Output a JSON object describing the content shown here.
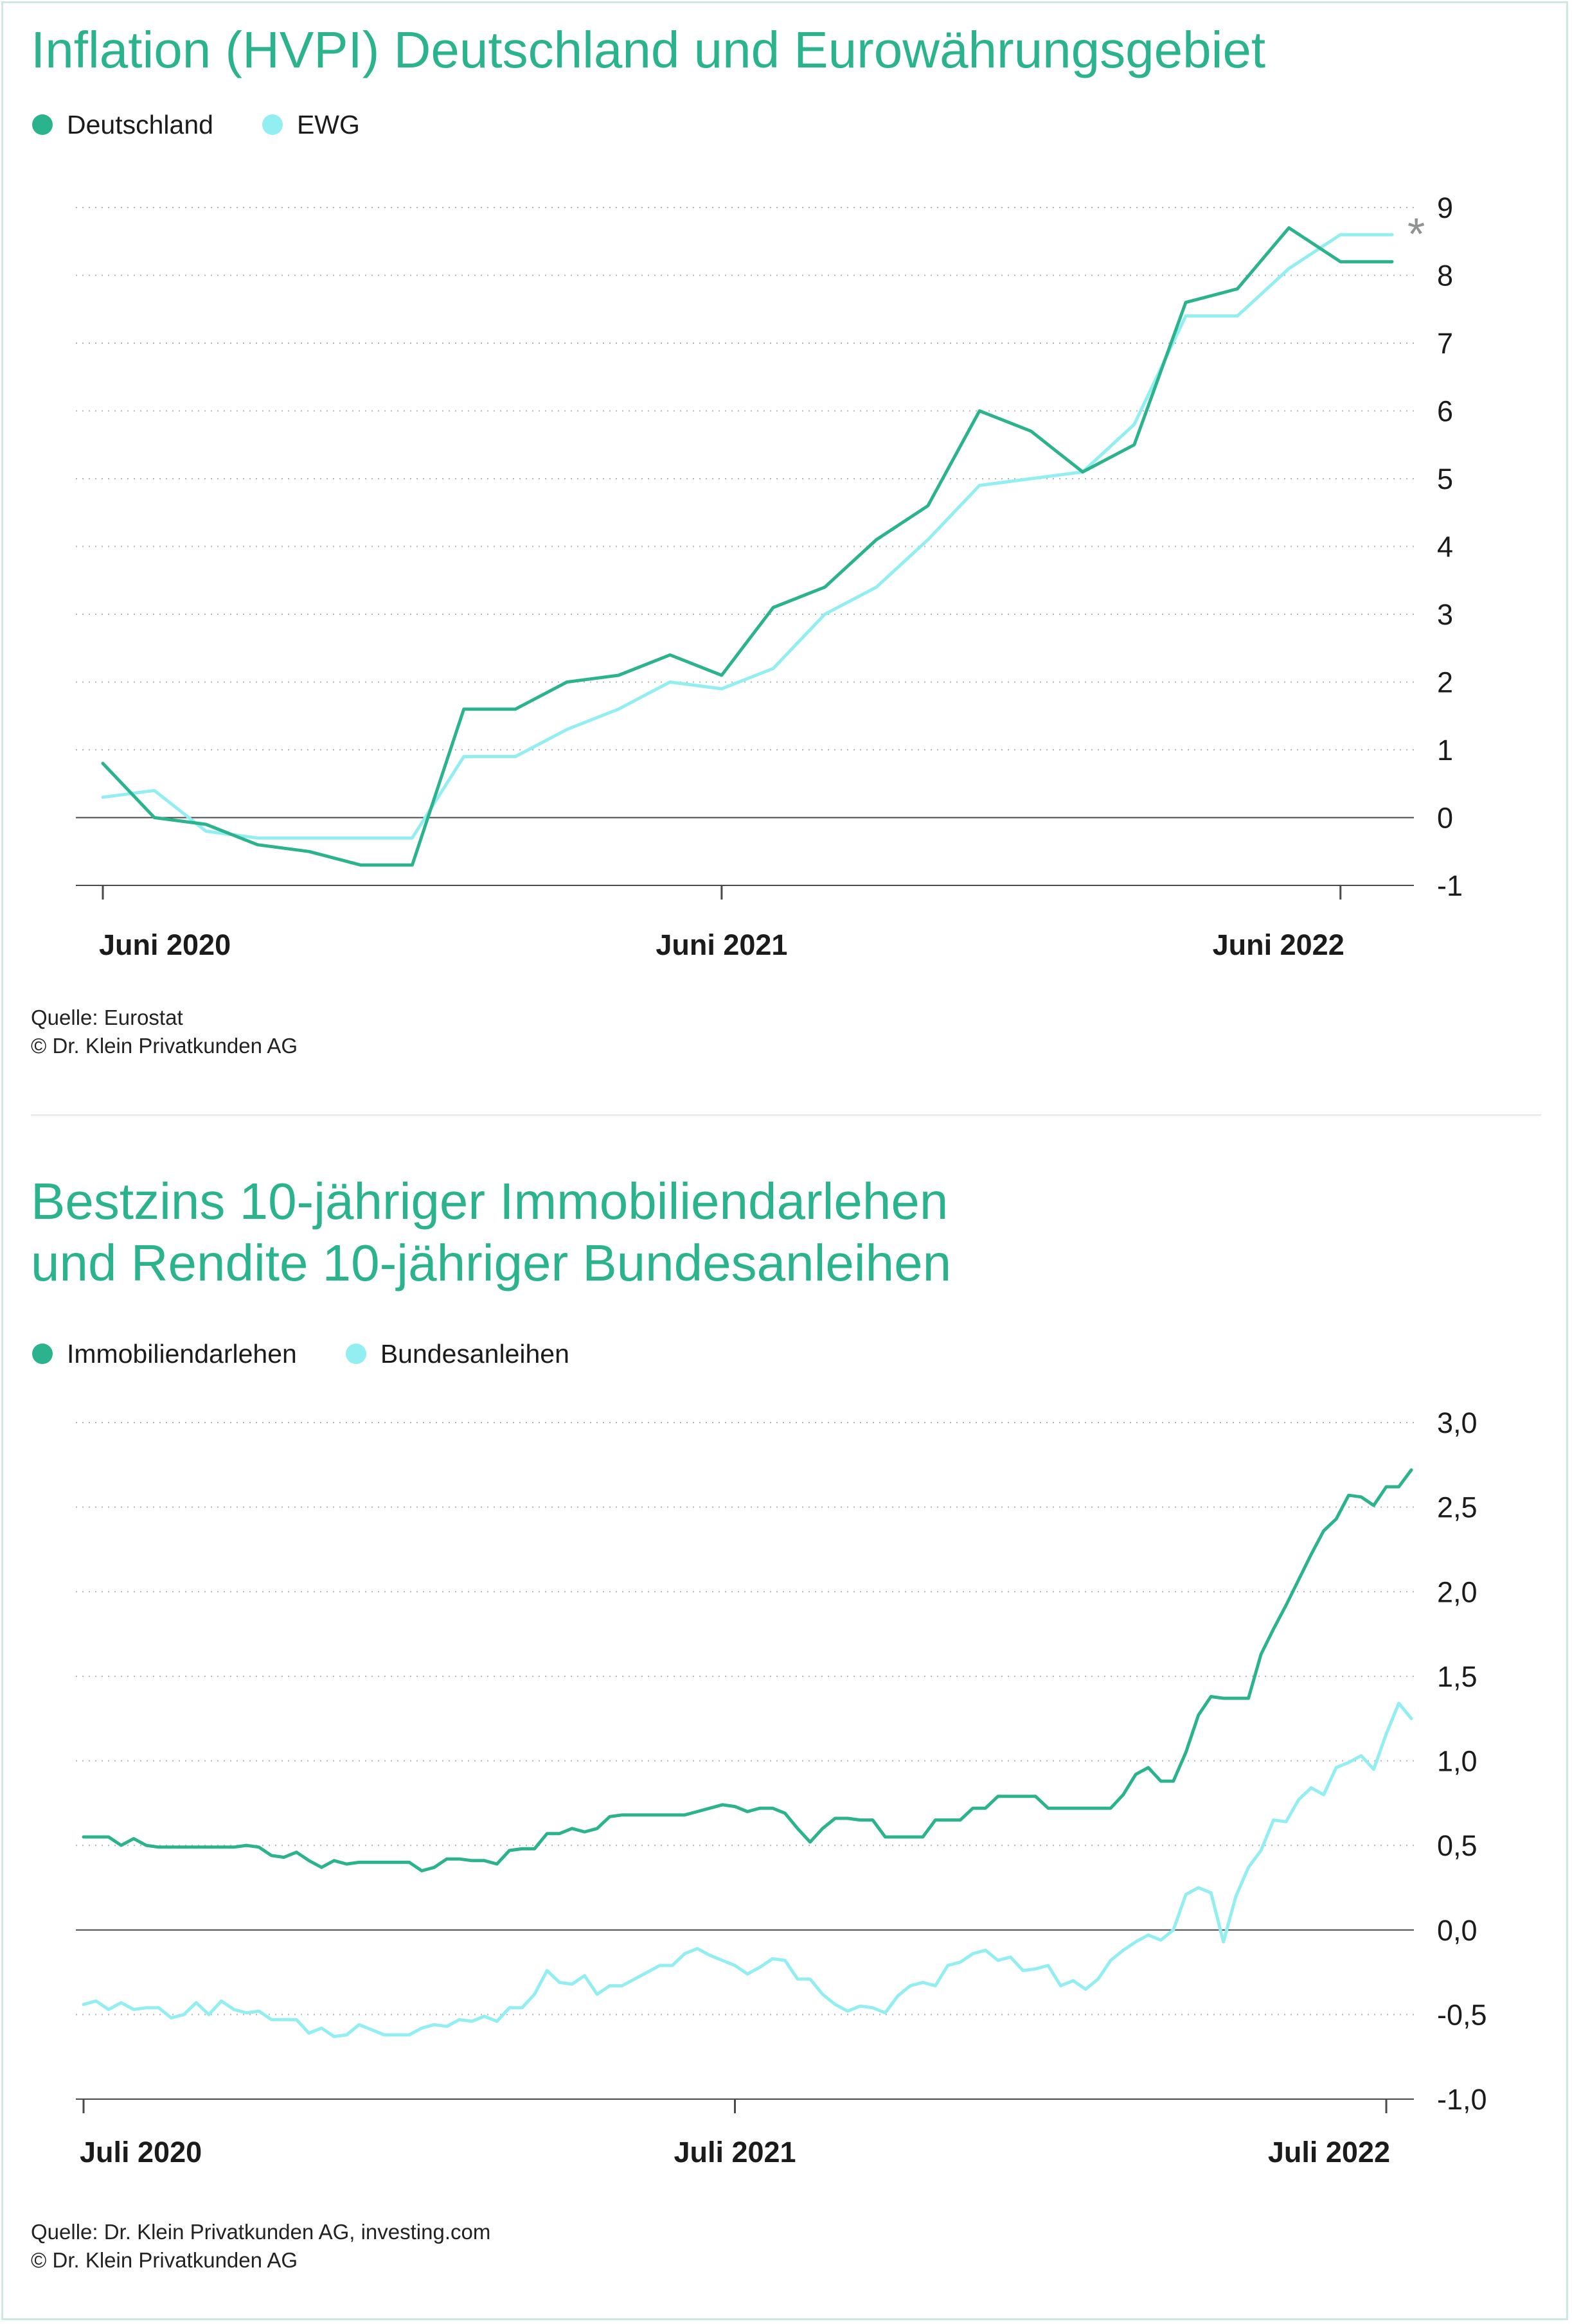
{
  "chart_data": [
    {
      "type": "line",
      "title": "Inflation (HVPI) Deutschland und Eurowährungsgebiet",
      "x_tick_labels": [
        "Juni 2020",
        "Juni 2021",
        "Juni 2022"
      ],
      "x_tick_index": [
        0,
        12,
        24
      ],
      "y_tick_labels": [
        "9",
        "8",
        "7",
        "6",
        "5",
        "4",
        "3",
        "2",
        "1",
        "0",
        "-1"
      ],
      "y_ticks": [
        9,
        8,
        7,
        6,
        5,
        4,
        3,
        2,
        1,
        0,
        -1
      ],
      "ylim": [
        -1,
        9
      ],
      "grid": true,
      "legend": "top-left",
      "annotation": "*",
      "series": [
        {
          "name": "Deutschland",
          "color": "#2bb38d",
          "values": [
            0.8,
            0.0,
            -0.1,
            -0.4,
            -0.5,
            -0.7,
            -0.7,
            1.6,
            1.6,
            2.0,
            2.1,
            2.4,
            2.1,
            3.1,
            3.4,
            4.1,
            4.6,
            6.0,
            5.7,
            5.1,
            5.5,
            7.6,
            7.8,
            8.7,
            8.2,
            8.2
          ]
        },
        {
          "name": "EWG",
          "color": "#93eef2",
          "values": [
            0.3,
            0.4,
            -0.2,
            -0.3,
            -0.3,
            -0.3,
            -0.3,
            0.9,
            0.9,
            1.3,
            1.6,
            2.0,
            1.9,
            2.2,
            3.0,
            3.4,
            4.1,
            4.9,
            5.0,
            5.1,
            5.8,
            7.4,
            7.4,
            8.1,
            8.6,
            8.6
          ]
        }
      ],
      "source": "Quelle: Eurostat",
      "copyright": "© Dr. Klein Privatkunden AG"
    },
    {
      "type": "line",
      "title_line1": "Bestzins 10-jähriger Immobiliendarlehen",
      "title_line2": "und Rendite 10-jähriger Bundesanleihen",
      "x_tick_labels": [
        "Juli 2020",
        "Juli 2021",
        "Juli 2022"
      ],
      "x_tick_index": [
        0,
        52,
        104
      ],
      "y_tick_labels": [
        "3,0",
        "2,5",
        "2,0",
        "1,5",
        "1,0",
        "0,5",
        "0,0",
        "-0,5",
        "-1,0"
      ],
      "y_ticks": [
        3.0,
        2.5,
        2.0,
        1.5,
        1.0,
        0.5,
        0.0,
        -0.5,
        -1.0
      ],
      "ylim": [
        -1.0,
        3.0
      ],
      "grid": true,
      "legend": "top-left",
      "series": [
        {
          "name": "Immobiliendarlehen",
          "color": "#2bb38d",
          "values": [
            0.55,
            0.55,
            0.55,
            0.5,
            0.54,
            0.5,
            0.49,
            0.49,
            0.49,
            0.49,
            0.49,
            0.49,
            0.49,
            0.5,
            0.49,
            0.44,
            0.43,
            0.46,
            0.41,
            0.37,
            0.41,
            0.39,
            0.4,
            0.4,
            0.4,
            0.4,
            0.4,
            0.35,
            0.37,
            0.42,
            0.42,
            0.41,
            0.41,
            0.39,
            0.47,
            0.48,
            0.48,
            0.57,
            0.57,
            0.6,
            0.58,
            0.6,
            0.67,
            0.68,
            0.68,
            0.68,
            0.68,
            0.68,
            0.68,
            0.7,
            0.72,
            0.74,
            0.73,
            0.7,
            0.72,
            0.72,
            0.69,
            0.6,
            0.52,
            0.6,
            0.66,
            0.66,
            0.65,
            0.65,
            0.55,
            0.55,
            0.55,
            0.55,
            0.65,
            0.65,
            0.65,
            0.72,
            0.72,
            0.79,
            0.79,
            0.79,
            0.79,
            0.72,
            0.72,
            0.72,
            0.72,
            0.72,
            0.72,
            0.8,
            0.92,
            0.96,
            0.88,
            0.88,
            1.05,
            1.27,
            1.38,
            1.37,
            1.37,
            1.37,
            1.63,
            1.78,
            1.92,
            2.07,
            2.22,
            2.36,
            2.43,
            2.57,
            2.56,
            2.51,
            2.62,
            2.62,
            2.72
          ]
        },
        {
          "name": "Bundesanleihen",
          "color": "#93eef2",
          "values": [
            -0.44,
            -0.42,
            -0.47,
            -0.43,
            -0.47,
            -0.46,
            -0.46,
            -0.52,
            -0.5,
            -0.43,
            -0.5,
            -0.42,
            -0.47,
            -0.49,
            -0.48,
            -0.53,
            -0.53,
            -0.53,
            -0.61,
            -0.58,
            -0.63,
            -0.62,
            -0.56,
            -0.59,
            -0.62,
            -0.62,
            -0.62,
            -0.58,
            -0.56,
            -0.57,
            -0.53,
            -0.54,
            -0.51,
            -0.54,
            -0.46,
            -0.46,
            -0.38,
            -0.24,
            -0.31,
            -0.32,
            -0.27,
            -0.38,
            -0.33,
            -0.33,
            -0.29,
            -0.25,
            -0.21,
            -0.21,
            -0.14,
            -0.11,
            -0.15,
            -0.18,
            -0.21,
            -0.26,
            -0.22,
            -0.17,
            -0.18,
            -0.29,
            -0.29,
            -0.38,
            -0.44,
            -0.48,
            -0.45,
            -0.46,
            -0.49,
            -0.39,
            -0.33,
            -0.31,
            -0.33,
            -0.21,
            -0.19,
            -0.14,
            -0.12,
            -0.18,
            -0.16,
            -0.24,
            -0.23,
            -0.21,
            -0.33,
            -0.3,
            -0.35,
            -0.29,
            -0.18,
            -0.12,
            -0.07,
            -0.03,
            -0.06,
            0.0,
            0.21,
            0.25,
            0.22,
            -0.07,
            0.2,
            0.37,
            0.47,
            0.65,
            0.64,
            0.77,
            0.84,
            0.8,
            0.96,
            0.99,
            1.03,
            0.95,
            1.16,
            1.34,
            1.25
          ]
        }
      ],
      "source": "Quelle: Dr. Klein Privatkunden AG, investing.com",
      "copyright": "© Dr. Klein Privatkunden AG"
    }
  ]
}
